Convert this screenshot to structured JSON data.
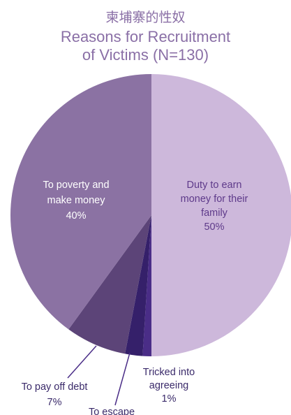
{
  "title_zh": "柬埔寨的性奴",
  "title_en_line1": "Reasons for Recruitment",
  "title_en_line2": "of Victims (N=130)",
  "chart_data": {
    "type": "pie",
    "title": "Reasons for Recruitment of Victims (N=130)",
    "slices": [
      {
        "label_lines": [
          "Duty to earn",
          "money for their",
          "family"
        ],
        "value": 50,
        "value_label": "50%",
        "color": "#cdb8db",
        "text_color": "#5e3a8a"
      },
      {
        "label_lines": [
          "Tricked into",
          "agreeing"
        ],
        "value": 1,
        "value_label": "1%",
        "color": "#4a2d87",
        "text_color": "#3a2a6a"
      },
      {
        "label_lines": [
          "To escape"
        ],
        "value": 2,
        "value_label": "",
        "color": "#35206a",
        "text_color": "#3a2a6a"
      },
      {
        "label_lines": [
          "To pay off debt"
        ],
        "value": 7,
        "value_label": "7%",
        "color": "#5c4478",
        "text_color": "#3a2a6a"
      },
      {
        "label_lines": [
          "To poverty and",
          "make money"
        ],
        "value": 40,
        "value_label": "40%",
        "color": "#8b72a3",
        "text_color": "#ffffff"
      }
    ]
  }
}
